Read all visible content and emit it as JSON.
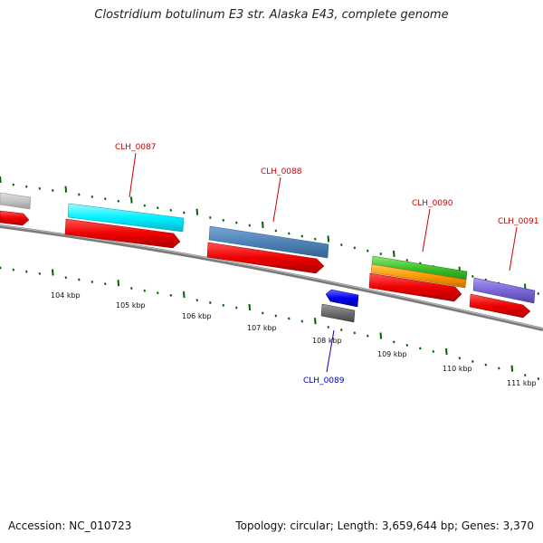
{
  "title": "Clostridium botulinum E3 str. Alaska E43, complete genome",
  "footer": {
    "accession": "Accession: NC_010723",
    "stats": "Topology: circular; Length: 3,659,644 bp; Genes: 3,370"
  },
  "ruler_labels": [
    "104 kbp",
    "105 kbp",
    "106 kbp",
    "107 kbp",
    "108 kbp",
    "109 kbp",
    "110 kbp",
    "111 kbp"
  ],
  "gene_labels": {
    "g87": "CLH_0087",
    "g88": "CLH_0088",
    "g89": "CLH_0089",
    "g90": "CLH_0090",
    "g91": "CLH_0091"
  },
  "colors": {
    "cds_forward": "#ff0000",
    "cds_reverse": "#0000ff",
    "backbone": "#808080",
    "tick": "#006400",
    "label_forward": "#cc0000",
    "label_reverse": "#0000cc"
  }
}
